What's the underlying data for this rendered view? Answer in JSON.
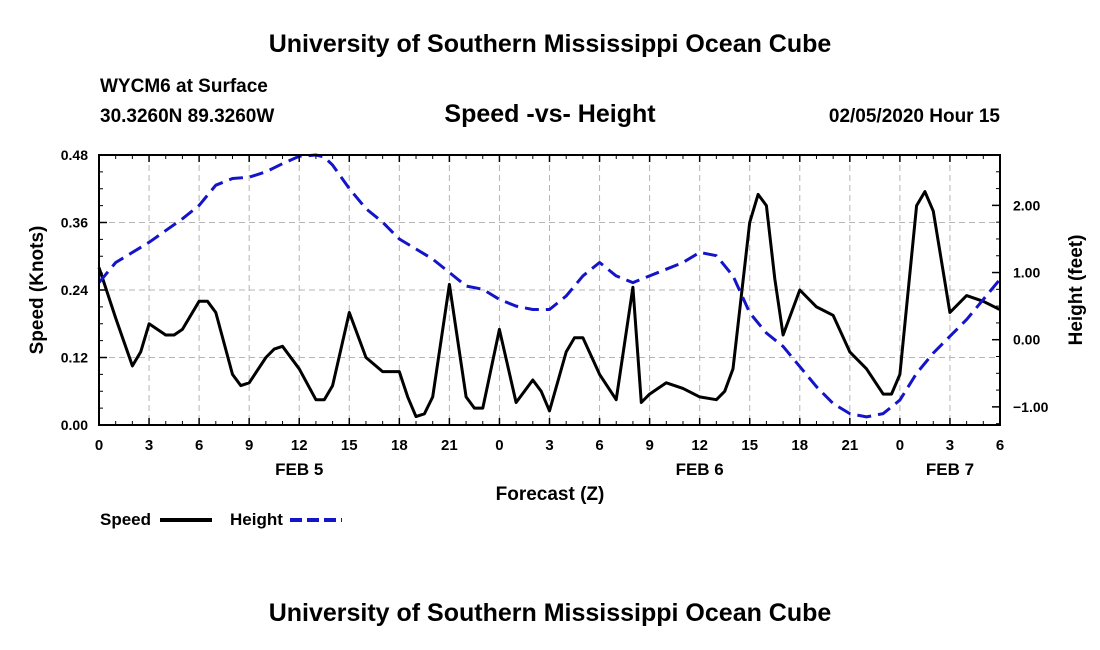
{
  "header": {
    "title": "University of Southern Mississippi Ocean Cube",
    "station": "WYCM6 at Surface",
    "coords": "30.3260N 89.3260W",
    "subtitle": "Speed -vs- Height",
    "datetime": "02/05/2020 Hour 15"
  },
  "footer": {
    "title": "University of Southern Mississippi Ocean Cube"
  },
  "colors": {
    "speed": "#000000",
    "height": "#1414c8",
    "grid": "#b4b4b4"
  },
  "chart_data": {
    "type": "line",
    "title": "Speed -vs- Height",
    "xlabel": "Forecast (Z)",
    "ylabel": "Speed (Knots)",
    "y2label": "Height (feet)",
    "xlim": [
      0,
      54
    ],
    "ylim": [
      0,
      0.48
    ],
    "y2lim": [
      -1.27,
      2.75
    ],
    "grid": true,
    "x_ticks": [
      0,
      3,
      6,
      9,
      12,
      15,
      18,
      21,
      24,
      27,
      30,
      33,
      36,
      39,
      42,
      45,
      48,
      51,
      54
    ],
    "x_tick_labels": [
      "0",
      "3",
      "6",
      "9",
      "12",
      "15",
      "18",
      "21",
      "0",
      "3",
      "6",
      "9",
      "12",
      "15",
      "18",
      "21",
      "0",
      "3",
      "6"
    ],
    "day_labels": [
      {
        "x": 12,
        "label": "FEB 5"
      },
      {
        "x": 36,
        "label": "FEB 6"
      },
      {
        "x": 51,
        "label": "FEB 7"
      }
    ],
    "y_ticks": [
      0,
      0.12,
      0.24,
      0.36,
      0.48
    ],
    "y_tick_labels": [
      "0.00",
      "0.12",
      "0.24",
      "0.36",
      "0.48"
    ],
    "y2_ticks": [
      -1,
      0,
      1,
      2
    ],
    "y2_tick_labels": [
      "−1.00",
      "0.00",
      "1.00",
      "2.00"
    ],
    "legend": {
      "position": "bottom-left",
      "speed_label": "Speed",
      "height_label": "Height"
    },
    "series": [
      {
        "name": "Speed",
        "axis": "left",
        "style": "solid",
        "x": [
          0,
          1,
          2,
          2.5,
          3,
          4,
          4.5,
          5,
          6,
          6.5,
          7,
          8,
          8.5,
          9,
          10,
          10.5,
          11,
          12,
          13,
          13.5,
          14,
          15,
          16,
          17,
          18,
          18.5,
          19,
          19.5,
          20,
          21,
          22,
          22.5,
          23,
          24,
          25,
          26,
          26.5,
          27,
          28,
          28.5,
          29,
          30,
          31,
          32,
          32.5,
          33,
          34,
          35,
          36,
          37,
          37.5,
          38,
          39,
          39.5,
          40,
          40.5,
          41,
          42,
          43,
          44,
          45,
          46,
          47,
          47.5,
          48,
          49,
          49.5,
          50,
          51,
          52,
          53,
          54
        ],
        "values": [
          0.28,
          0.19,
          0.105,
          0.13,
          0.18,
          0.16,
          0.16,
          0.17,
          0.22,
          0.22,
          0.2,
          0.09,
          0.07,
          0.075,
          0.12,
          0.135,
          0.14,
          0.1,
          0.045,
          0.045,
          0.07,
          0.2,
          0.12,
          0.095,
          0.095,
          0.05,
          0.015,
          0.02,
          0.05,
          0.25,
          0.05,
          0.03,
          0.03,
          0.17,
          0.04,
          0.08,
          0.06,
          0.025,
          0.13,
          0.155,
          0.155,
          0.09,
          0.045,
          0.245,
          0.04,
          0.055,
          0.075,
          0.065,
          0.05,
          0.045,
          0.06,
          0.1,
          0.36,
          0.41,
          0.39,
          0.26,
          0.16,
          0.24,
          0.21,
          0.195,
          0.13,
          0.1,
          0.055,
          0.055,
          0.09,
          0.39,
          0.415,
          0.38,
          0.2,
          0.23,
          0.22,
          0.205
        ]
      },
      {
        "name": "Height",
        "axis": "right",
        "style": "dashed",
        "x": [
          0,
          1,
          3,
          5,
          6,
          7,
          8,
          9,
          10,
          11,
          12,
          13,
          13.5,
          14,
          15,
          16,
          17,
          18,
          19,
          20,
          21,
          22,
          23,
          24,
          25,
          26,
          27,
          28,
          29,
          30,
          31,
          32,
          33,
          34,
          35,
          36,
          37,
          38,
          39,
          40,
          41,
          42,
          43,
          44,
          45,
          46,
          47,
          48,
          49,
          50,
          51,
          52,
          53,
          54
        ],
        "values": [
          0.85,
          1.15,
          1.45,
          1.8,
          2.0,
          2.3,
          2.4,
          2.42,
          2.5,
          2.62,
          2.73,
          2.75,
          2.72,
          2.6,
          2.25,
          1.95,
          1.75,
          1.5,
          1.35,
          1.2,
          1.0,
          0.8,
          0.75,
          0.6,
          0.5,
          0.45,
          0.45,
          0.65,
          0.95,
          1.15,
          0.95,
          0.85,
          0.95,
          1.05,
          1.15,
          1.3,
          1.25,
          0.95,
          0.4,
          0.1,
          -0.1,
          -0.4,
          -0.7,
          -0.95,
          -1.1,
          -1.15,
          -1.1,
          -0.9,
          -0.5,
          -0.2,
          0.05,
          0.3,
          0.6,
          0.9
        ]
      }
    ]
  }
}
